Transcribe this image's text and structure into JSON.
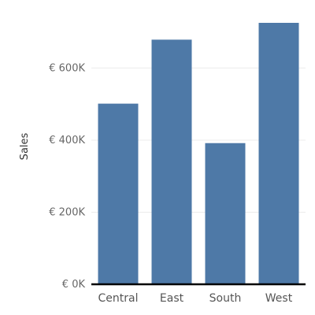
{
  "chart_data": {
    "type": "bar",
    "categories": [
      "Central",
      "East",
      "South",
      "West"
    ],
    "values": [
      501240,
      678781,
      391722,
      725458
    ],
    "ylabel": "Sales",
    "xlabel": "",
    "ylim": [
      0,
      725458
    ],
    "y_ticks": [
      0,
      200000,
      400000,
      600000
    ],
    "y_tick_labels": [
      "€ 0K",
      "€ 200K",
      "€ 400K",
      "€ 600K"
    ],
    "grid": true,
    "legend": "none"
  },
  "colors": {
    "bar": "#4e79a7",
    "baseline": "#000000",
    "grid": "#ececec"
  }
}
